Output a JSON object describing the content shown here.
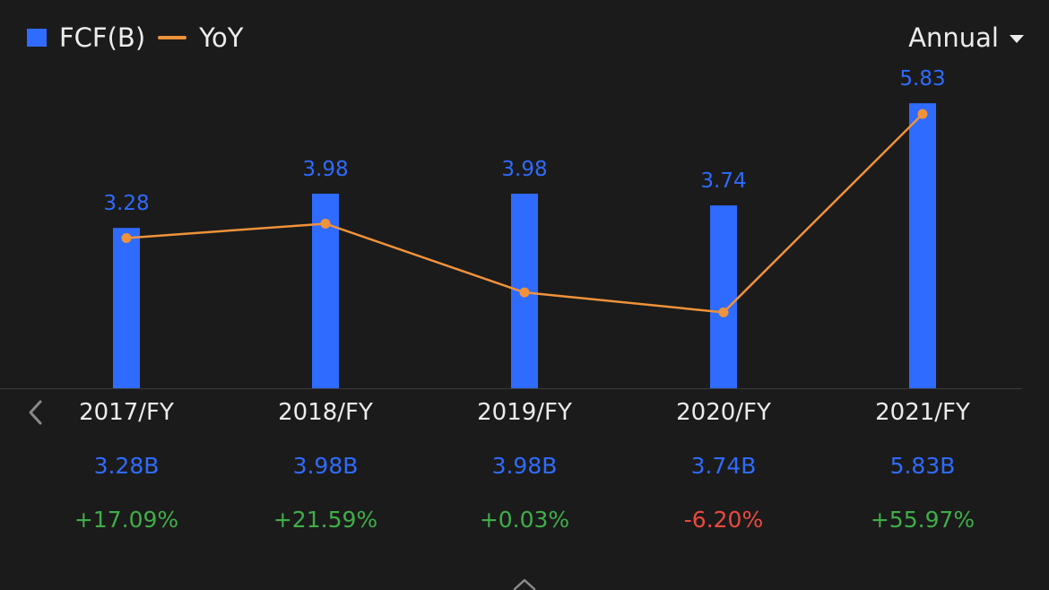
{
  "legend": {
    "bar_label": "FCF(B)",
    "line_label": "YoY"
  },
  "period_selector": {
    "label": "Annual"
  },
  "colors": {
    "bar": "#2f6bff",
    "line": "#f0923a",
    "positive": "#3fae49",
    "negative": "#ea4a3f"
  },
  "chart_data": {
    "type": "bar",
    "categories": [
      "2017/FY",
      "2018/FY",
      "2019/FY",
      "2020/FY",
      "2021/FY"
    ],
    "series": [
      {
        "name": "FCF(B)",
        "type": "bar",
        "values": [
          3.28,
          3.98,
          3.98,
          3.74,
          5.83
        ],
        "data_labels": [
          "3.28",
          "3.98",
          "3.98",
          "3.74",
          "5.83"
        ]
      },
      {
        "name": "YoY",
        "type": "line",
        "values": [
          17.09,
          21.59,
          0.03,
          -6.2,
          55.97
        ]
      }
    ],
    "ylim_bar": [
      0,
      6.2
    ],
    "ylim_line": [
      -30,
      65
    ],
    "grid": false,
    "legend_position": "top-left"
  },
  "table": {
    "columns": [
      {
        "year": "2017/FY",
        "value": "3.28B",
        "yoy": "+17.09%",
        "yoy_sign": "pos"
      },
      {
        "year": "2018/FY",
        "value": "3.98B",
        "yoy": "+21.59%",
        "yoy_sign": "pos"
      },
      {
        "year": "2019/FY",
        "value": "3.98B",
        "yoy": "+0.03%",
        "yoy_sign": "pos"
      },
      {
        "year": "2020/FY",
        "value": "3.74B",
        "yoy": "-6.20%",
        "yoy_sign": "neg"
      },
      {
        "year": "2021/FY",
        "value": "5.83B",
        "yoy": "+55.97%",
        "yoy_sign": "pos"
      }
    ]
  },
  "icons": {
    "prev": "chevron-left-icon",
    "expand": "chevron-up-icon",
    "dropdown": "caret-down-icon"
  }
}
